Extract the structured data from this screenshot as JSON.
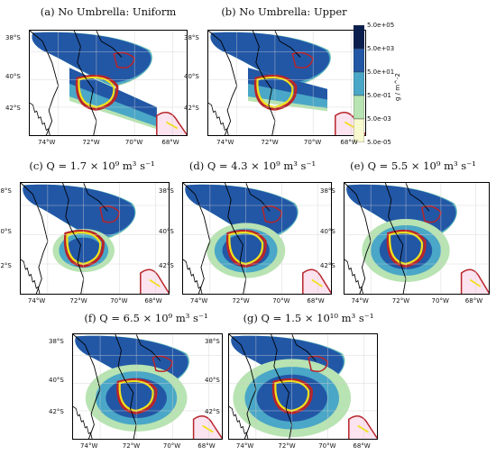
{
  "chart_data": {
    "type": "heatmap",
    "panels": [
      {
        "title": "(a) No Umbrella: Uniform"
      },
      {
        "title": "(b) No Umbrella: Upper"
      },
      {
        "title": "(c) Q = 1.7 × 10⁹ m³ s⁻¹"
      },
      {
        "title": "(d) Q = 4.3 × 10⁹ m³ s⁻¹"
      },
      {
        "title": "(e) Q = 5.5 × 10⁹ m³ s⁻¹"
      },
      {
        "title": "(f) Q = 6.5 × 10⁹ m³ s⁻¹"
      },
      {
        "title": "(g) Q = 1.5 × 10¹⁰ m³ s⁻¹"
      }
    ],
    "x_ticks": [
      "74°W",
      "72°W",
      "70°W",
      "68°W"
    ],
    "y_ticks": [
      "38°S",
      "40°S",
      "42°S"
    ],
    "colorbar": {
      "units": "g / m^-2",
      "levels": [
        "5.0e+05",
        "5.0e+03",
        "5.0e+01",
        "5.0e-01",
        "5.0e-03",
        "5.0e-05"
      ],
      "colors": [
        "#0b1f4f",
        "#2257a6",
        "#4aa7c7",
        "#b8e3b2",
        "#f7f9cf"
      ]
    },
    "colors": {
      "contour_yellow": "#f2e01b",
      "contour_red": "#b8252b",
      "coastline": "#000000"
    }
  }
}
